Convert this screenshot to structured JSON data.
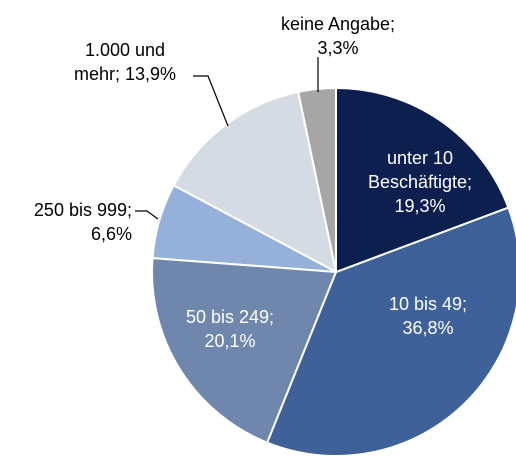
{
  "chart_data": {
    "type": "pie",
    "categories": [
      "unter 10\nBeschäftigte;",
      "10 bis 49;",
      "50 bis 249;",
      "250 bis 999;",
      "1.000 und\nmehr;",
      "keine Angabe;"
    ],
    "values": [
      19.3,
      36.8,
      20.1,
      6.6,
      13.9,
      3.3
    ],
    "value_labels": [
      "19,3%",
      "36,8%",
      "20,1%",
      "6,6%",
      "13,9%",
      "3,3%"
    ],
    "colors": [
      "#0d1f4f",
      "#3e6199",
      "#6f86ad",
      "#95b1d9",
      "#d5dbe3",
      "#a6a6a6"
    ]
  }
}
